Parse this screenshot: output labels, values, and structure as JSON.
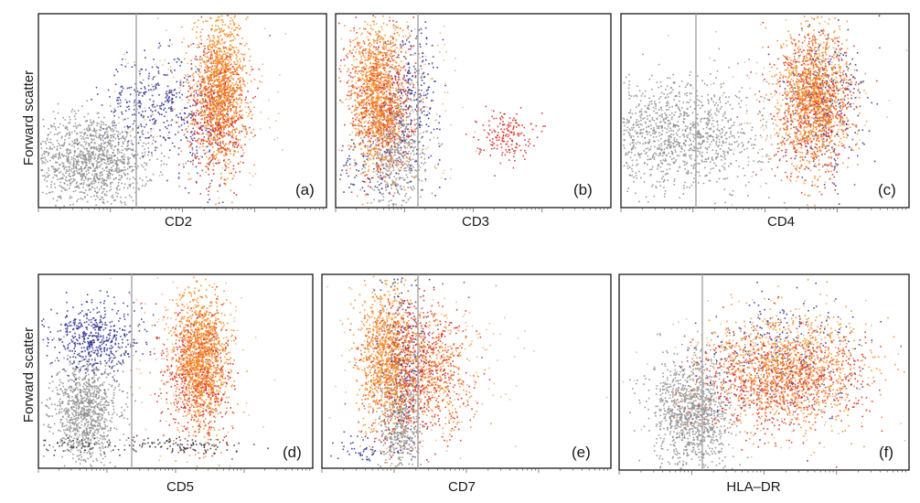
{
  "chart_data": [
    {
      "type": "scatter",
      "panel": "(a)",
      "xlabel": "CD2",
      "ylabel": "Forward scatter",
      "series": [
        {
          "color": "#8c8c8c",
          "clusters": [
            {
              "cx": 0.18,
              "cy": 0.25,
              "sx": 0.11,
              "sy": 0.12,
              "n": 1300
            }
          ]
        },
        {
          "color": "#2a2f8f",
          "clusters": [
            {
              "cx": 0.4,
              "cy": 0.55,
              "sx": 0.09,
              "sy": 0.12,
              "n": 320
            },
            {
              "cx": 0.55,
              "cy": 0.4,
              "sx": 0.06,
              "sy": 0.15,
              "n": 120
            }
          ]
        },
        {
          "color": "#d7261e",
          "clusters": [
            {
              "cx": 0.62,
              "cy": 0.52,
              "sx": 0.05,
              "sy": 0.17,
              "n": 620
            }
          ]
        },
        {
          "color": "#f58a1f",
          "clusters": [
            {
              "cx": 0.63,
              "cy": 0.62,
              "sx": 0.045,
              "sy": 0.19,
              "n": 1150
            }
          ]
        },
        {
          "color": "#f2b380",
          "clusters": [
            {
              "cx": 0.58,
              "cy": 0.55,
              "sx": 0.13,
              "sy": 0.22,
              "n": 160
            }
          ]
        }
      ]
    },
    {
      "type": "scatter",
      "panel": "(b)",
      "xlabel": "CD3",
      "ylabel": "",
      "series": [
        {
          "color": "#8c8c8c",
          "clusters": [
            {
              "cx": 0.22,
              "cy": 0.28,
              "sx": 0.05,
              "sy": 0.15,
              "n": 520
            }
          ]
        },
        {
          "color": "#2a2f8f",
          "clusters": [
            {
              "cx": 0.28,
              "cy": 0.6,
              "sx": 0.05,
              "sy": 0.18,
              "n": 260
            },
            {
              "cx": 0.12,
              "cy": 0.2,
              "sx": 0.06,
              "sy": 0.08,
              "n": 80
            }
          ]
        },
        {
          "color": "#d7261e",
          "clusters": [
            {
              "cx": 0.16,
              "cy": 0.55,
              "sx": 0.06,
              "sy": 0.2,
              "n": 600
            },
            {
              "cx": 0.61,
              "cy": 0.38,
              "sx": 0.05,
              "sy": 0.06,
              "n": 170
            }
          ]
        },
        {
          "color": "#f58a1f",
          "clusters": [
            {
              "cx": 0.15,
              "cy": 0.58,
              "sx": 0.05,
              "sy": 0.2,
              "n": 1100
            }
          ]
        },
        {
          "color": "#f2b380",
          "clusters": [
            {
              "cx": 0.25,
              "cy": 0.55,
              "sx": 0.12,
              "sy": 0.25,
              "n": 180
            }
          ]
        }
      ]
    },
    {
      "type": "scatter",
      "panel": "(c)",
      "xlabel": "CD4",
      "ylabel": "",
      "series": [
        {
          "color": "#8c8c8c",
          "clusters": [
            {
              "cx": 0.2,
              "cy": 0.38,
              "sx": 0.15,
              "sy": 0.14,
              "n": 1200
            }
          ]
        },
        {
          "color": "#2a2f8f",
          "clusters": [
            {
              "cx": 0.7,
              "cy": 0.55,
              "sx": 0.07,
              "sy": 0.18,
              "n": 300
            }
          ]
        },
        {
          "color": "#d7261e",
          "clusters": [
            {
              "cx": 0.67,
              "cy": 0.52,
              "sx": 0.07,
              "sy": 0.18,
              "n": 620
            }
          ]
        },
        {
          "color": "#f58a1f",
          "clusters": [
            {
              "cx": 0.67,
              "cy": 0.57,
              "sx": 0.06,
              "sy": 0.18,
              "n": 1150
            }
          ]
        },
        {
          "color": "#f2b380",
          "clusters": [
            {
              "cx": 0.6,
              "cy": 0.55,
              "sx": 0.14,
              "sy": 0.24,
              "n": 160
            }
          ]
        }
      ]
    },
    {
      "type": "scatter",
      "panel": "(d)",
      "xlabel": "CD5",
      "ylabel": "Forward scatter",
      "series": [
        {
          "color": "#8c8c8c",
          "clusters": [
            {
              "cx": 0.17,
              "cy": 0.3,
              "sx": 0.06,
              "sy": 0.13,
              "n": 950
            }
          ]
        },
        {
          "color": "#2a2f8f",
          "clusters": [
            {
              "cx": 0.2,
              "cy": 0.67,
              "sx": 0.08,
              "sy": 0.09,
              "n": 500
            }
          ]
        },
        {
          "color": "#d7261e",
          "clusters": [
            {
              "cx": 0.58,
              "cy": 0.5,
              "sx": 0.06,
              "sy": 0.17,
              "n": 650
            }
          ]
        },
        {
          "color": "#f58a1f",
          "clusters": [
            {
              "cx": 0.59,
              "cy": 0.56,
              "sx": 0.05,
              "sy": 0.18,
              "n": 1150
            }
          ]
        },
        {
          "color": "#3a2a2a",
          "clusters": [
            {
              "cx": 0.52,
              "cy": 0.12,
              "sx": 0.12,
              "sy": 0.02,
              "n": 110
            },
            {
              "cx": 0.12,
              "cy": 0.12,
              "sx": 0.08,
              "sy": 0.025,
              "n": 60
            }
          ]
        },
        {
          "color": "#f2b380",
          "clusters": [
            {
              "cx": 0.55,
              "cy": 0.55,
              "sx": 0.12,
              "sy": 0.25,
              "n": 160
            }
          ]
        }
      ]
    },
    {
      "type": "scatter",
      "panel": "(e)",
      "xlabel": "CD7",
      "ylabel": "",
      "series": [
        {
          "color": "#8c8c8c",
          "clusters": [
            {
              "cx": 0.27,
              "cy": 0.25,
              "sx": 0.035,
              "sy": 0.15,
              "n": 520
            }
          ]
        },
        {
          "color": "#2a2f8f",
          "clusters": [
            {
              "cx": 0.28,
              "cy": 0.6,
              "sx": 0.04,
              "sy": 0.2,
              "n": 240
            },
            {
              "cx": 0.15,
              "cy": 0.1,
              "sx": 0.06,
              "sy": 0.04,
              "n": 60
            }
          ]
        },
        {
          "color": "#d7261e",
          "clusters": [
            {
              "cx": 0.32,
              "cy": 0.52,
              "sx": 0.09,
              "sy": 0.18,
              "n": 750
            }
          ]
        },
        {
          "color": "#f58a1f",
          "clusters": [
            {
              "cx": 0.22,
              "cy": 0.58,
              "sx": 0.05,
              "sy": 0.19,
              "n": 950
            },
            {
              "cx": 0.38,
              "cy": 0.5,
              "sx": 0.07,
              "sy": 0.14,
              "n": 350
            }
          ]
        },
        {
          "color": "#f2b380",
          "clusters": [
            {
              "cx": 0.35,
              "cy": 0.52,
              "sx": 0.15,
              "sy": 0.24,
              "n": 220
            }
          ]
        }
      ]
    },
    {
      "type": "scatter",
      "panel": "(f)",
      "xlabel": "HLA–DR",
      "ylabel": "",
      "series": [
        {
          "color": "#8c8c8c",
          "clusters": [
            {
              "cx": 0.25,
              "cy": 0.3,
              "sx": 0.07,
              "sy": 0.15,
              "n": 1100
            }
          ]
        },
        {
          "color": "#2a2f8f",
          "clusters": [
            {
              "cx": 0.55,
              "cy": 0.58,
              "sx": 0.13,
              "sy": 0.15,
              "n": 260
            }
          ]
        },
        {
          "color": "#d7261e",
          "clusters": [
            {
              "cx": 0.55,
              "cy": 0.45,
              "sx": 0.14,
              "sy": 0.13,
              "n": 750
            }
          ]
        },
        {
          "color": "#f58a1f",
          "clusters": [
            {
              "cx": 0.58,
              "cy": 0.52,
              "sx": 0.13,
              "sy": 0.14,
              "n": 1100
            }
          ]
        },
        {
          "color": "#f2b380",
          "clusters": [
            {
              "cx": 0.52,
              "cy": 0.5,
              "sx": 0.2,
              "sy": 0.22,
              "n": 180
            }
          ]
        }
      ]
    }
  ]
}
